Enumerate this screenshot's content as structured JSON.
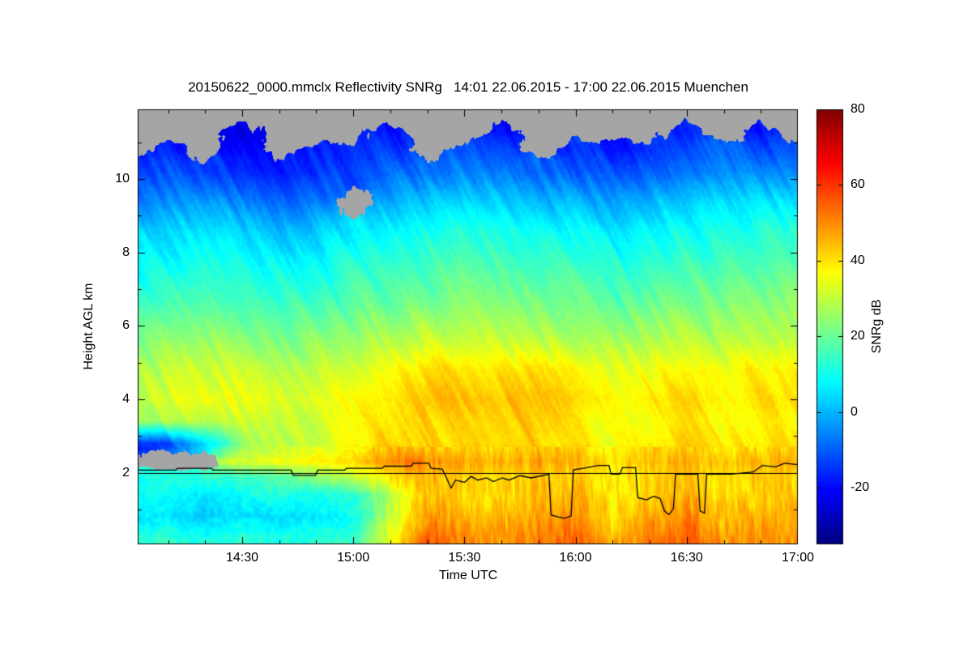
{
  "title": "20150622_0000.mmclx Reflectivity SNRg   14:01 22.06.2015 - 17:00 22.06.2015 Muenchen",
  "chart_data": {
    "type": "heatmap",
    "title": "20150622_0000.mmclx Reflectivity SNRg   14:01 22.06.2015 - 17:00 22.06.2015 Muenchen",
    "xlabel": "Time UTC",
    "ylabel": "Height AGL km",
    "colorbar_label": "SNRg dB",
    "xlim": [
      14.03,
      17.0
    ],
    "ylim": [
      0.05,
      11.9
    ],
    "clim": [
      -35,
      80
    ],
    "x_ticks": [
      {
        "v": 14.5,
        "label": "14:30"
      },
      {
        "v": 15.0,
        "label": "15:00"
      },
      {
        "v": 15.5,
        "label": "15:30"
      },
      {
        "v": 16.0,
        "label": "16:00"
      },
      {
        "v": 16.5,
        "label": "16:30"
      },
      {
        "v": 17.0,
        "label": "17:00"
      }
    ],
    "y_ticks": [
      2,
      4,
      6,
      8,
      10
    ],
    "colorbar_ticks": [
      80,
      60,
      40,
      20,
      0,
      -20
    ],
    "nodata_color": "#a5a5a5",
    "line_color": "#000000",
    "grid_on": false,
    "rain_onset_hours": 15.08,
    "rain_top_km": 2.7,
    "reference_line_km": 2.0,
    "times": [
      14.0,
      14.167,
      14.333,
      14.5,
      14.667,
      14.833,
      15.0,
      15.167,
      15.333,
      15.5,
      15.667,
      15.833,
      16.0,
      16.167,
      16.333,
      16.5,
      16.667,
      16.833,
      17.0
    ],
    "heights": [
      0.2,
      0.8,
      1.4,
      1.9,
      2.3,
      2.8,
      3.4,
      4.0,
      4.8,
      5.6,
      6.6,
      7.6,
      8.6,
      9.4,
      10.2,
      10.8,
      11.3,
      11.8
    ],
    "snr_grid": [
      [
        12,
        14,
        10,
        13,
        11,
        12,
        14,
        35,
        55,
        50,
        48,
        52,
        55,
        45,
        50,
        55,
        48,
        50,
        48
      ],
      [
        4,
        6,
        2,
        5,
        3,
        6,
        9,
        30,
        50,
        45,
        44,
        48,
        50,
        40,
        46,
        50,
        44,
        46,
        45
      ],
      [
        8,
        10,
        5,
        9,
        12,
        10,
        13,
        28,
        45,
        42,
        40,
        44,
        46,
        38,
        42,
        46,
        40,
        42,
        42
      ],
      [
        10,
        12,
        14,
        15,
        18,
        25,
        30,
        40,
        45,
        42,
        40,
        44,
        42,
        38,
        42,
        44,
        40,
        42,
        40
      ],
      [
        null,
        null,
        null,
        32,
        35,
        38,
        40,
        52,
        50,
        45,
        45,
        48,
        45,
        40,
        44,
        46,
        42,
        44,
        45
      ],
      [
        -18,
        -12,
        5,
        25,
        30,
        32,
        35,
        42,
        42,
        40,
        40,
        42,
        40,
        36,
        40,
        42,
        38,
        40,
        40
      ],
      [
        25,
        28,
        30,
        32,
        30,
        32,
        35,
        40,
        42,
        40,
        42,
        44,
        40,
        36,
        38,
        40,
        36,
        38,
        38
      ],
      [
        30,
        33,
        36,
        35,
        32,
        34,
        36,
        40,
        44,
        45,
        44,
        45,
        42,
        38,
        40,
        42,
        38,
        40,
        42
      ],
      [
        28,
        30,
        32,
        30,
        28,
        30,
        32,
        36,
        40,
        42,
        40,
        40,
        38,
        34,
        36,
        38,
        36,
        38,
        38
      ],
      [
        22,
        24,
        25,
        24,
        22,
        24,
        26,
        28,
        30,
        32,
        30,
        30,
        28,
        26,
        28,
        30,
        28,
        30,
        30
      ],
      [
        15,
        16,
        18,
        16,
        15,
        16,
        18,
        20,
        22,
        24,
        22,
        22,
        20,
        18,
        20,
        22,
        22,
        24,
        24
      ],
      [
        8,
        10,
        12,
        10,
        8,
        10,
        12,
        14,
        16,
        18,
        16,
        15,
        14,
        12,
        14,
        16,
        16,
        18,
        18
      ],
      [
        2,
        4,
        5,
        3,
        0,
        2,
        5,
        8,
        10,
        12,
        10,
        8,
        8,
        6,
        8,
        10,
        10,
        12,
        12
      ],
      [
        -8,
        -5,
        -4,
        -6,
        -10,
        -8,
        null,
        -2,
        2,
        4,
        2,
        0,
        0,
        -2,
        0,
        2,
        4,
        5,
        5
      ],
      [
        -15,
        -12,
        -14,
        -16,
        -18,
        -15,
        -12,
        -10,
        -8,
        -6,
        -8,
        -10,
        -10,
        -12,
        -10,
        -8,
        -6,
        -5,
        -5
      ],
      [
        null,
        -18,
        null,
        -20,
        null,
        -18,
        -16,
        -14,
        null,
        -12,
        -14,
        null,
        -16,
        -18,
        -15,
        -12,
        -10,
        -12,
        -10
      ],
      [
        null,
        null,
        null,
        -22,
        null,
        null,
        null,
        -18,
        null,
        null,
        -20,
        null,
        null,
        null,
        null,
        -16,
        null,
        -18,
        null
      ],
      [
        null,
        null,
        null,
        null,
        null,
        null,
        null,
        null,
        null,
        null,
        null,
        null,
        null,
        null,
        null,
        null,
        null,
        null,
        null
      ]
    ],
    "cloud_base_line": [
      [
        14.03,
        2.07
      ],
      [
        14.2,
        2.07
      ],
      [
        14.21,
        2.12
      ],
      [
        14.36,
        2.12
      ],
      [
        14.37,
        2.07
      ],
      [
        14.72,
        2.07
      ],
      [
        14.73,
        1.93
      ],
      [
        14.83,
        1.93
      ],
      [
        14.84,
        2.07
      ],
      [
        14.96,
        2.07
      ],
      [
        14.97,
        2.12
      ],
      [
        15.13,
        2.12
      ],
      [
        15.14,
        2.18
      ],
      [
        15.26,
        2.18
      ],
      [
        15.27,
        2.26
      ],
      [
        15.34,
        2.26
      ],
      [
        15.35,
        2.12
      ],
      [
        15.4,
        2.1
      ],
      [
        15.42,
        1.85
      ],
      [
        15.44,
        1.58
      ],
      [
        15.46,
        1.8
      ],
      [
        15.5,
        1.74
      ],
      [
        15.53,
        1.9
      ],
      [
        15.56,
        1.8
      ],
      [
        15.6,
        1.86
      ],
      [
        15.63,
        1.76
      ],
      [
        15.67,
        1.86
      ],
      [
        15.7,
        1.8
      ],
      [
        15.75,
        1.92
      ],
      [
        15.8,
        1.86
      ],
      [
        15.85,
        1.92
      ],
      [
        15.88,
        1.96
      ],
      [
        15.89,
        0.85
      ],
      [
        15.92,
        0.8
      ],
      [
        15.95,
        0.76
      ],
      [
        15.98,
        0.82
      ],
      [
        15.99,
        2.08
      ],
      [
        16.05,
        2.14
      ],
      [
        16.1,
        2.2
      ],
      [
        16.15,
        2.2
      ],
      [
        16.16,
        1.96
      ],
      [
        16.2,
        1.96
      ],
      [
        16.21,
        2.14
      ],
      [
        16.27,
        2.14
      ],
      [
        16.28,
        1.32
      ],
      [
        16.32,
        1.26
      ],
      [
        16.35,
        1.36
      ],
      [
        16.38,
        1.3
      ],
      [
        16.4,
        0.96
      ],
      [
        16.42,
        0.86
      ],
      [
        16.44,
        1.02
      ],
      [
        16.45,
        1.96
      ],
      [
        16.55,
        1.96
      ],
      [
        16.56,
        0.96
      ],
      [
        16.58,
        0.9
      ],
      [
        16.59,
        1.96
      ],
      [
        16.7,
        1.96
      ],
      [
        16.8,
        2.02
      ],
      [
        16.84,
        2.2
      ],
      [
        16.9,
        2.16
      ],
      [
        16.94,
        2.26
      ],
      [
        17.0,
        2.22
      ]
    ]
  }
}
